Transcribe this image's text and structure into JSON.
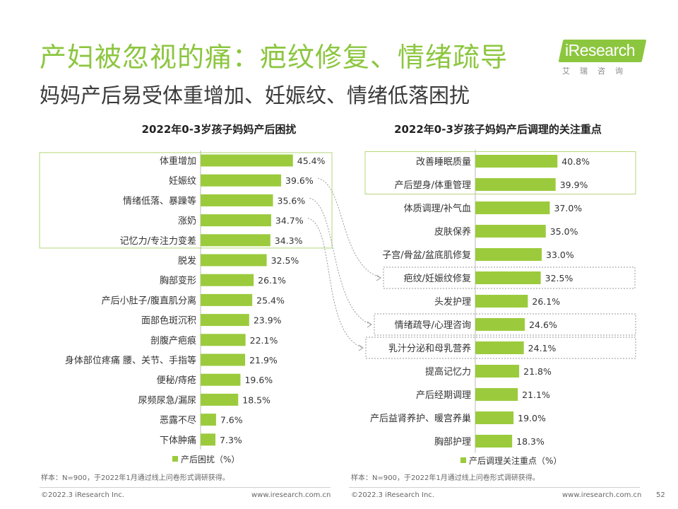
{
  "header": {
    "title": "产妇被忽视的痛：疤纹修复、情绪疏导",
    "subtitle": "妈妈产后易受体重增加、妊娠纹、情绪低落困扰",
    "logo_text": "iResearch",
    "logo_sub": "艾瑞咨询"
  },
  "colors": {
    "accent": "#8cc63f",
    "bar": "#9bcb3c",
    "box": "#b5d77a",
    "dotted": "#999999"
  },
  "chart_data": [
    {
      "type": "bar",
      "title": "2022年0-3岁孩子妈妈产后困扰",
      "orientation": "horizontal",
      "categories": [
        "体重增加",
        "妊娠纹",
        "情绪低落、暴躁等",
        "涨奶",
        "记忆力/专注力变差",
        "脱发",
        "胸部变形",
        "产后小肚子/腹直肌分离",
        "面部色斑沉积",
        "剖腹产疤痕",
        "身体部位疼痛 腰、关节、手指等",
        "便秘/痔疮",
        "尿频尿急/漏尿",
        "恶露不尽",
        "下体肿痛"
      ],
      "values": [
        45.4,
        39.6,
        35.6,
        34.7,
        34.3,
        32.5,
        26.1,
        25.4,
        23.9,
        22.1,
        21.9,
        19.6,
        18.5,
        7.6,
        7.3
      ],
      "value_labels": [
        "45.4%",
        "39.6%",
        "35.6%",
        "34.7%",
        "34.3%",
        "32.5%",
        "26.1%",
        "25.4%",
        "23.9%",
        "22.1%",
        "21.9%",
        "19.6%",
        "18.5%",
        "7.6%",
        "7.3%"
      ],
      "legend": "产后困扰（%）",
      "highlighted": [
        0,
        1,
        2,
        3,
        4
      ]
    },
    {
      "type": "bar",
      "title": "2022年0-3岁孩子妈妈产后调理的关注重点",
      "orientation": "horizontal",
      "categories": [
        "改善睡眠质量",
        "产后塑身/体重管理",
        "体质调理/补气血",
        "皮肤保养",
        "子宫/骨盆/盆底肌修复",
        "疤纹/妊娠纹修复",
        "头发护理",
        "情绪疏导/心理咨询",
        "乳汁分泌和母乳营养",
        "提高记忆力",
        "产后经期调理",
        "产后益肾养护、暖宫养巢",
        "胸部护理"
      ],
      "values": [
        40.8,
        39.9,
        37.0,
        35.0,
        33.0,
        32.5,
        26.1,
        24.6,
        24.1,
        21.8,
        21.1,
        19.0,
        18.3
      ],
      "value_labels": [
        "40.8%",
        "39.9%",
        "37.0%",
        "35.0%",
        "33.0%",
        "32.5%",
        "26.1%",
        "24.6%",
        "24.1%",
        "21.8%",
        "21.1%",
        "19.0%",
        "18.3%"
      ],
      "legend": "产后调理关注重点（%）",
      "highlighted": [
        0,
        1
      ]
    }
  ],
  "notes": {
    "left": "样本：N=900，于2022年1月通过线上问卷形式调研获得。",
    "right": "样本：N=900，于2022年1月通过线上问卷形式调研获得。"
  },
  "footer": {
    "left_copyright": "©2022.3 iResearch Inc.",
    "left_url": "www.iresearch.com.cn",
    "right_copyright": "©2022.3 iResearch Inc.",
    "right_url": "www.iresearch.com.cn",
    "page_number": "52"
  }
}
